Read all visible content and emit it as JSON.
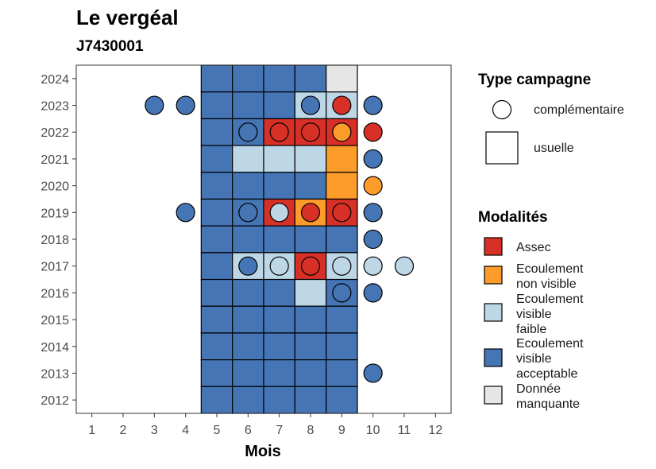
{
  "chart_data": {
    "type": "heatmap",
    "title": "Le vergéal",
    "subtitle": "J7430001",
    "xlabel": "Mois",
    "ylabel": "",
    "x_ticks": [
      "1",
      "2",
      "3",
      "4",
      "5",
      "6",
      "7",
      "8",
      "9",
      "10",
      "11",
      "12"
    ],
    "y_ticks": [
      "2012",
      "2013",
      "2014",
      "2015",
      "2016",
      "2017",
      "2018",
      "2019",
      "2020",
      "2021",
      "2022",
      "2023",
      "2024"
    ],
    "xlim": [
      0.5,
      12.5
    ],
    "ylim": [
      2011.5,
      2024.5
    ],
    "grid": false,
    "legend_position": "right",
    "colors": {
      "assec": "#d73027",
      "ecoulement_non_visible": "#fd9b2b",
      "ecoulement_visible_faible": "#bdd7e7",
      "ecoulement_visible_acceptable": "#4575b4",
      "donnee_manquante": "#e6e6e6"
    },
    "legend_type": {
      "title": "Type campagne",
      "entries": [
        {
          "label": "complémentaire",
          "shape": "circle"
        },
        {
          "label": "usuelle",
          "shape": "square"
        }
      ]
    },
    "legend_modalites": {
      "title": "Modalités",
      "entries": [
        {
          "key": "assec",
          "lines": [
            "Assec"
          ]
        },
        {
          "key": "ecoulement_non_visible",
          "lines": [
            "Ecoulement",
            "non visible"
          ]
        },
        {
          "key": "ecoulement_visible_faible",
          "lines": [
            "Ecoulement",
            "visible",
            "faible"
          ]
        },
        {
          "key": "ecoulement_visible_acceptable",
          "lines": [
            "Ecoulement",
            "visible",
            "acceptable"
          ]
        },
        {
          "key": "donnee_manquante",
          "lines": [
            "Donnée",
            "manquante"
          ]
        }
      ]
    },
    "usuelle": [
      {
        "year": 2024,
        "values": {
          "5": "ecoulement_visible_acceptable",
          "6": "ecoulement_visible_acceptable",
          "7": "ecoulement_visible_acceptable",
          "8": "ecoulement_visible_acceptable",
          "9": "donnee_manquante"
        }
      },
      {
        "year": 2023,
        "values": {
          "5": "ecoulement_visible_acceptable",
          "6": "ecoulement_visible_acceptable",
          "7": "ecoulement_visible_acceptable",
          "8": "ecoulement_visible_faible",
          "9": "ecoulement_visible_faible"
        }
      },
      {
        "year": 2022,
        "values": {
          "5": "ecoulement_visible_acceptable",
          "6": "ecoulement_visible_acceptable",
          "7": "assec",
          "8": "assec",
          "9": "assec"
        }
      },
      {
        "year": 2021,
        "values": {
          "5": "ecoulement_visible_acceptable",
          "6": "ecoulement_visible_faible",
          "7": "ecoulement_visible_faible",
          "8": "ecoulement_visible_faible",
          "9": "ecoulement_non_visible"
        }
      },
      {
        "year": 2020,
        "values": {
          "5": "ecoulement_visible_acceptable",
          "6": "ecoulement_visible_acceptable",
          "7": "ecoulement_visible_acceptable",
          "8": "ecoulement_visible_acceptable",
          "9": "ecoulement_non_visible"
        }
      },
      {
        "year": 2019,
        "values": {
          "5": "ecoulement_visible_acceptable",
          "6": "ecoulement_visible_acceptable",
          "7": "assec",
          "8": "ecoulement_non_visible",
          "9": "assec"
        }
      },
      {
        "year": 2018,
        "values": {
          "5": "ecoulement_visible_acceptable",
          "6": "ecoulement_visible_acceptable",
          "7": "ecoulement_visible_acceptable",
          "8": "ecoulement_visible_acceptable",
          "9": "ecoulement_visible_acceptable"
        }
      },
      {
        "year": 2017,
        "values": {
          "5": "ecoulement_visible_acceptable",
          "6": "ecoulement_visible_faible",
          "7": "ecoulement_visible_faible",
          "8": "assec",
          "9": "ecoulement_visible_faible"
        }
      },
      {
        "year": 2016,
        "values": {
          "5": "ecoulement_visible_acceptable",
          "6": "ecoulement_visible_acceptable",
          "7": "ecoulement_visible_acceptable",
          "8": "ecoulement_visible_faible",
          "9": "ecoulement_visible_acceptable"
        }
      },
      {
        "year": 2015,
        "values": {
          "5": "ecoulement_visible_acceptable",
          "6": "ecoulement_visible_acceptable",
          "7": "ecoulement_visible_acceptable",
          "8": "ecoulement_visible_acceptable",
          "9": "ecoulement_visible_acceptable"
        }
      },
      {
        "year": 2014,
        "values": {
          "5": "ecoulement_visible_acceptable",
          "6": "ecoulement_visible_acceptable",
          "7": "ecoulement_visible_acceptable",
          "8": "ecoulement_visible_acceptable",
          "9": "ecoulement_visible_acceptable"
        }
      },
      {
        "year": 2013,
        "values": {
          "5": "ecoulement_visible_acceptable",
          "6": "ecoulement_visible_acceptable",
          "7": "ecoulement_visible_acceptable",
          "8": "ecoulement_visible_acceptable",
          "9": "ecoulement_visible_acceptable"
        }
      },
      {
        "year": 2012,
        "values": {
          "5": "ecoulement_visible_acceptable",
          "6": "ecoulement_visible_acceptable",
          "7": "ecoulement_visible_acceptable",
          "8": "ecoulement_visible_acceptable",
          "9": "ecoulement_visible_acceptable"
        }
      }
    ],
    "complementaire": [
      {
        "year": 2023,
        "month": 3,
        "value": "ecoulement_visible_acceptable"
      },
      {
        "year": 2023,
        "month": 4,
        "value": "ecoulement_visible_acceptable"
      },
      {
        "year": 2023,
        "month": 8,
        "value": "ecoulement_visible_acceptable"
      },
      {
        "year": 2023,
        "month": 9,
        "value": "assec"
      },
      {
        "year": 2023,
        "month": 10,
        "value": "ecoulement_visible_acceptable"
      },
      {
        "year": 2022,
        "month": 6,
        "value": "ecoulement_visible_acceptable"
      },
      {
        "year": 2022,
        "month": 7,
        "value": "assec"
      },
      {
        "year": 2022,
        "month": 8,
        "value": "assec"
      },
      {
        "year": 2022,
        "month": 9,
        "value": "ecoulement_non_visible"
      },
      {
        "year": 2022,
        "month": 10,
        "value": "assec"
      },
      {
        "year": 2021,
        "month": 10,
        "value": "ecoulement_visible_acceptable"
      },
      {
        "year": 2020,
        "month": 10,
        "value": "ecoulement_non_visible"
      },
      {
        "year": 2019,
        "month": 4,
        "value": "ecoulement_visible_acceptable"
      },
      {
        "year": 2019,
        "month": 6,
        "value": "ecoulement_visible_acceptable"
      },
      {
        "year": 2019,
        "month": 7,
        "value": "ecoulement_visible_faible"
      },
      {
        "year": 2019,
        "month": 8,
        "value": "assec"
      },
      {
        "year": 2019,
        "month": 9,
        "value": "assec"
      },
      {
        "year": 2019,
        "month": 10,
        "value": "ecoulement_visible_acceptable"
      },
      {
        "year": 2018,
        "month": 10,
        "value": "ecoulement_visible_acceptable"
      },
      {
        "year": 2017,
        "month": 6,
        "value": "ecoulement_visible_acceptable"
      },
      {
        "year": 2017,
        "month": 7,
        "value": "ecoulement_visible_faible"
      },
      {
        "year": 2017,
        "month": 8,
        "value": "assec"
      },
      {
        "year": 2017,
        "month": 9,
        "value": "ecoulement_visible_faible"
      },
      {
        "year": 2017,
        "month": 10,
        "value": "ecoulement_visible_faible"
      },
      {
        "year": 2017,
        "month": 11,
        "value": "ecoulement_visible_faible"
      },
      {
        "year": 2016,
        "month": 9,
        "value": "ecoulement_visible_acceptable"
      },
      {
        "year": 2016,
        "month": 10,
        "value": "ecoulement_visible_acceptable"
      },
      {
        "year": 2013,
        "month": 10,
        "value": "ecoulement_visible_acceptable"
      }
    ]
  }
}
